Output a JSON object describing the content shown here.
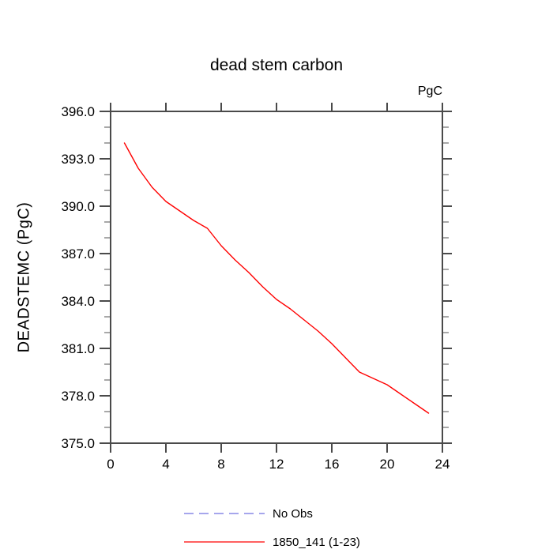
{
  "chart_data": {
    "type": "line",
    "title": "dead stem carbon",
    "units_label": "PgC",
    "xlabel": "",
    "ylabel": "DEADSTEMC  (PgC)",
    "xlim": [
      0,
      24
    ],
    "ylim": [
      375,
      396
    ],
    "xticks": [
      0,
      4,
      8,
      12,
      16,
      20,
      24
    ],
    "xtick_labels": [
      "0",
      "4",
      "8",
      "12",
      "16",
      "20",
      "24"
    ],
    "yticks": [
      375,
      378,
      381,
      384,
      387,
      390,
      393,
      396
    ],
    "ytick_labels": [
      "375.0",
      "378.0",
      "381.0",
      "384.0",
      "387.0",
      "390.0",
      "393.0",
      "396.0"
    ],
    "y_minor_step": 1,
    "grid": false,
    "axis_color": "#4a4a4a",
    "minor_tick_color": "#8a8a8a",
    "background": "#ffffff",
    "series": [
      {
        "name": "1850_141 (1-23)",
        "color": "#ff0000",
        "style": "solid",
        "x": [
          1,
          2,
          3,
          4,
          5,
          6,
          7,
          8,
          9,
          10,
          11,
          12,
          13,
          14,
          15,
          16,
          17,
          18,
          19,
          20,
          21,
          22,
          23
        ],
        "y": [
          394.0,
          392.4,
          391.2,
          390.3,
          389.7,
          389.1,
          388.6,
          387.5,
          386.6,
          385.8,
          384.9,
          384.1,
          383.5,
          382.8,
          382.1,
          381.3,
          380.4,
          379.5,
          379.1,
          378.7,
          378.1,
          377.5,
          376.9
        ]
      },
      {
        "name": "No Obs",
        "color": "#8888e6",
        "style": "dashed",
        "x": [],
        "y": []
      }
    ],
    "legend": {
      "position": "bottom",
      "entries": [
        {
          "label": "No Obs",
          "color": "#8888e6",
          "style": "dashed"
        },
        {
          "label": "1850_141 (1-23)",
          "color": "#ff0000",
          "style": "solid"
        }
      ]
    }
  }
}
